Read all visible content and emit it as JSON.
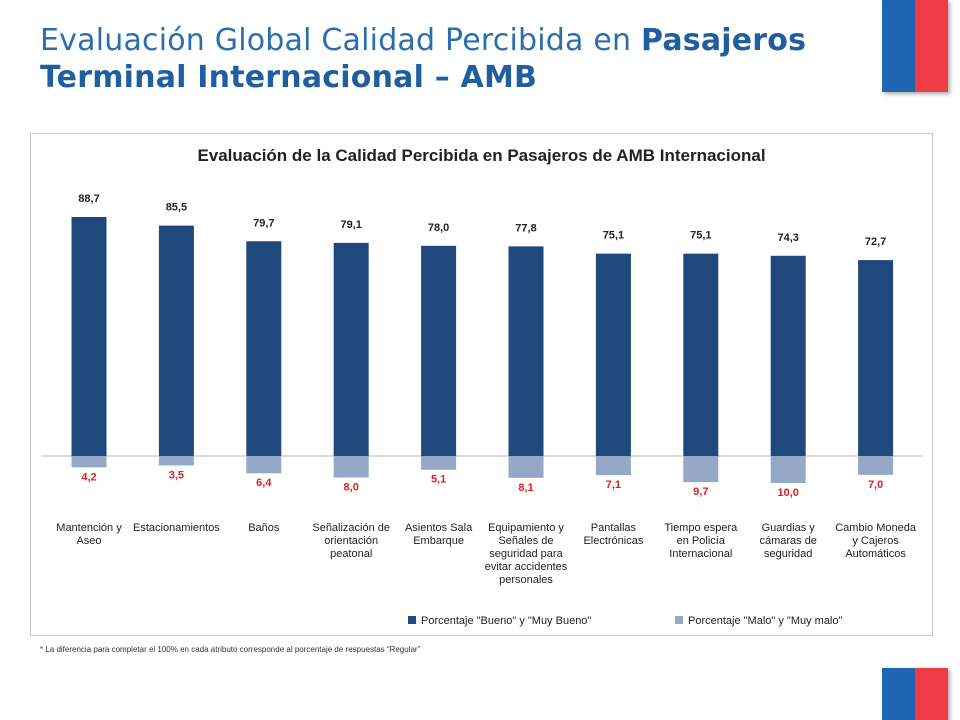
{
  "slide": {
    "title_normal": "Evaluación Global Calidad Percibida en ",
    "title_bold_1": "Pasajeros",
    "title_bold_2": "Terminal Internacional – AMB"
  },
  "footnote": "* La diferencia para completar el 100% en cada atributo corresponde al porcentaje de respuestas “Regular”",
  "colors": {
    "title": "#2a6eb0",
    "good": "#1f497d",
    "bad": "#95a8c5",
    "bad_label": "#e02020",
    "flag_blue": "#1f66b2",
    "flag_red": "#ee3b45"
  },
  "chart_data": {
    "type": "bar",
    "title": "Evaluación de la Calidad Percibida en Pasajeros de AMB Internacional",
    "categories": [
      "Mantención y Aseo",
      "Estacionamientos",
      "Baños",
      "Señalización de orientación peatonal",
      "Asientos Sala Embarque",
      "Equipamiento y Señales de seguridad para evitar accidentes personales",
      "Pantallas Electrónicas",
      "Tiempo espera en Policía Internacional",
      "Guardias y cámaras de seguridad",
      "Cambio Moneda y Cajeros Automáticos"
    ],
    "category_lines": [
      [
        "Mantención y",
        "Aseo"
      ],
      [
        "Estacionamientos"
      ],
      [
        "Baños"
      ],
      [
        "Señalización de",
        "orientación",
        "peatonal"
      ],
      [
        "Asientos Sala",
        "Embarque"
      ],
      [
        "Equipamiento y",
        "Señales de",
        "seguridad para",
        "evitar accidentes",
        "personales"
      ],
      [
        "Pantallas",
        "Electrónicas"
      ],
      [
        "Tiempo espera",
        "en Policía",
        "Internacional"
      ],
      [
        "Guardias y",
        "cámaras de",
        "seguridad"
      ],
      [
        "Cambio Moneda",
        "y Cajeros",
        "Automáticos"
      ]
    ],
    "series": [
      {
        "name": "Porcentaje \"Bueno\" y \"Muy Bueno\"",
        "values": [
          88.7,
          85.5,
          79.7,
          79.1,
          78.0,
          77.8,
          75.1,
          75.1,
          74.3,
          72.7
        ],
        "labels": [
          "88,7",
          "85,5",
          "79,7",
          "79,1",
          "78,0",
          "77,8",
          "75,1",
          "75,1",
          "74,3",
          "72,7"
        ],
        "direction": "up"
      },
      {
        "name": "Porcentaje \"Malo\" y \"Muy malo\"",
        "values": [
          4.2,
          3.5,
          6.4,
          8.0,
          5.1,
          8.1,
          7.1,
          9.7,
          10.0,
          7.0
        ],
        "labels": [
          "4,2",
          "3,5",
          "6,4",
          "8,0",
          "5,1",
          "8,1",
          "7,1",
          "9,7",
          "10,0",
          "7,0"
        ],
        "direction": "down"
      }
    ],
    "legend_position": "bottom",
    "gridlines": false
  }
}
